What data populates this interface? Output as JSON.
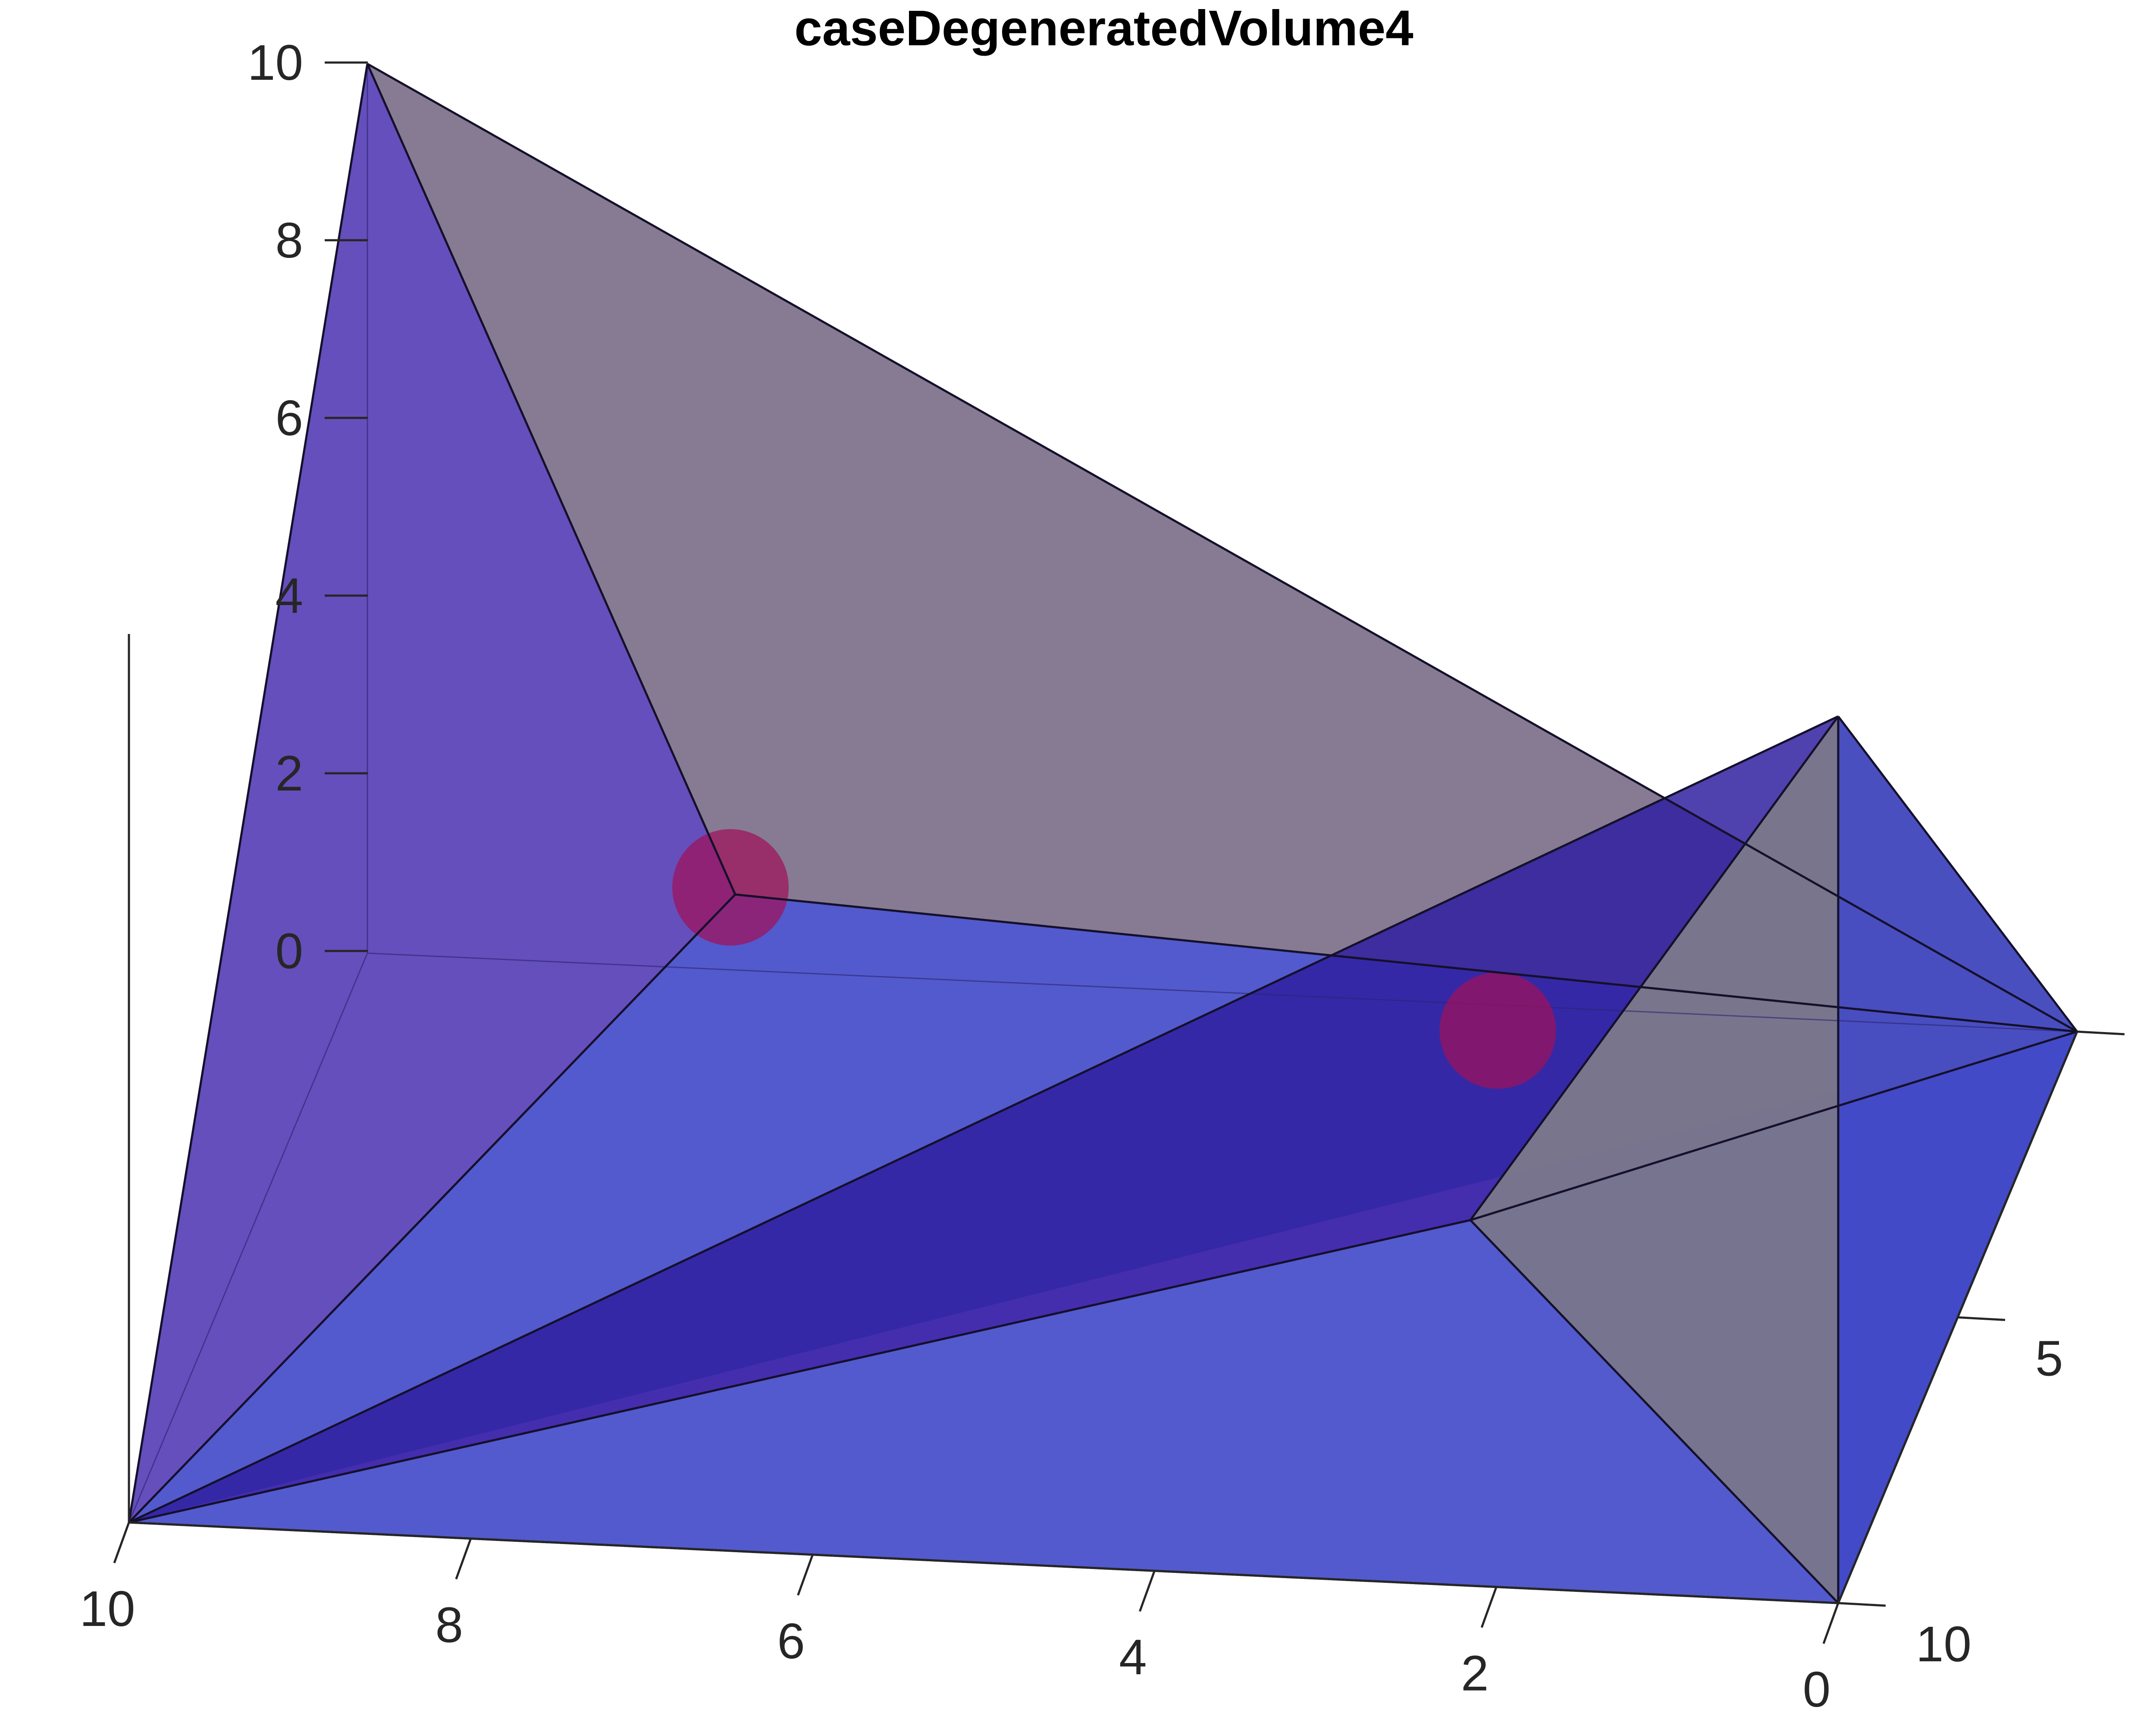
{
  "chart_data": {
    "type": "3d-polyhedra",
    "title": "caseDegeneratedVolume4",
    "xlabel": "",
    "ylabel": "",
    "zlabel": "",
    "x_ticks": [
      "10",
      "8",
      "6",
      "4",
      "2",
      "0"
    ],
    "y_ticks": [
      "0",
      "5",
      "10"
    ],
    "z_ticks": [
      "0",
      "2",
      "4",
      "6",
      "8",
      "10"
    ],
    "xlim": [
      0,
      10
    ],
    "ylim": [
      0,
      10
    ],
    "zlim": [
      0,
      10
    ],
    "grid": false,
    "bodies": [
      {
        "name": "",
        "vertices": [
          [
            10,
            0,
            0
          ],
          [
            10,
            10,
            14
          ],
          [
            0,
            0,
            0
          ],
          [
            6.9,
            7.0,
            5.5
          ]
        ]
      },
      {
        "name": "",
        "vertices": [
          [
            10,
            0,
            0
          ],
          [
            0,
            10,
            0
          ],
          [
            0,
            0,
            0
          ],
          [
            0,
            10,
            7
          ],
          [
            2.9,
            3.5,
            2
          ]
        ]
      }
    ],
    "markers": [
      {
        "x": 6.9,
        "y": 7.0,
        "z": 5.5
      },
      {
        "x": 2.9,
        "y": 3.5,
        "z": 2.0
      }
    ],
    "colors": {
      "face_blue": "#4048c8",
      "face_dark_blue": "#3020a0",
      "face_violet": "#4a30b0",
      "face_mauve": "#847891",
      "face_tan": "#958470",
      "face_grey": "#77748e",
      "marker": "#a0105a",
      "edge": "#15102b",
      "axis": "#262626"
    }
  }
}
